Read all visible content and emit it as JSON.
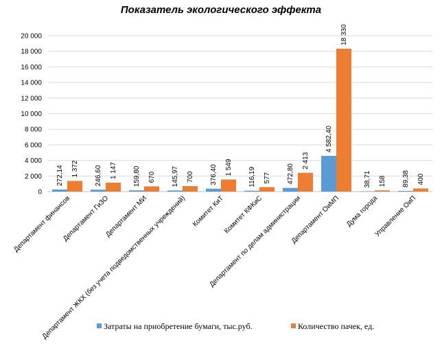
{
  "chart_data": {
    "type": "bar",
    "title": "Показатель экологического эффекта",
    "categories": [
      "Департамент финансов",
      "Департамент ГиЗО",
      "Департамент МИ",
      "Департамент ЖКХ (без учета подведомственных учреждений)",
      "Комитет КиТ",
      "Комитет КФКиС",
      "Департамент по делам администрации",
      "Департамент ОиМП",
      "Дума города",
      "Управление ОиП"
    ],
    "series": [
      {
        "name": "Затраты на приобретение бумаги, тыс.руб.",
        "color": "#5b9bd5",
        "values": [
          272.14,
          246.6,
          159.8,
          145.97,
          376.4,
          116.19,
          472.8,
          4582.4,
          38.71,
          89.38
        ],
        "labels": [
          "272,14",
          "246,60",
          "159,80",
          "145,97",
          "376,40",
          "116,19",
          "472,80",
          "4 582,40",
          "38,71",
          "89,38"
        ]
      },
      {
        "name": "Количество пачек, ед.",
        "color": "#ed7d31",
        "values": [
          1372,
          1147,
          670,
          700,
          1549,
          577,
          2413,
          18330,
          158,
          400
        ],
        "labels": [
          "1 372",
          "1 147",
          "670",
          "700",
          "1 549",
          "577",
          "2 413",
          "18 330",
          "158",
          "400"
        ]
      }
    ],
    "ylim": [
      0,
      20000
    ],
    "yticks": [
      {
        "value": 0,
        "label": "0"
      },
      {
        "value": 2000,
        "label": "2 000"
      },
      {
        "value": 4000,
        "label": "4 000"
      },
      {
        "value": 6000,
        "label": "6 000"
      },
      {
        "value": 8000,
        "label": "8 000"
      },
      {
        "value": 10000,
        "label": "10 000"
      },
      {
        "value": 12000,
        "label": "12 000"
      },
      {
        "value": 14000,
        "label": "14 000"
      },
      {
        "value": 16000,
        "label": "16 000"
      },
      {
        "value": 18000,
        "label": "18 000"
      },
      {
        "value": 20000,
        "label": "20 000"
      }
    ],
    "grid": true,
    "legend_position": "bottom"
  }
}
